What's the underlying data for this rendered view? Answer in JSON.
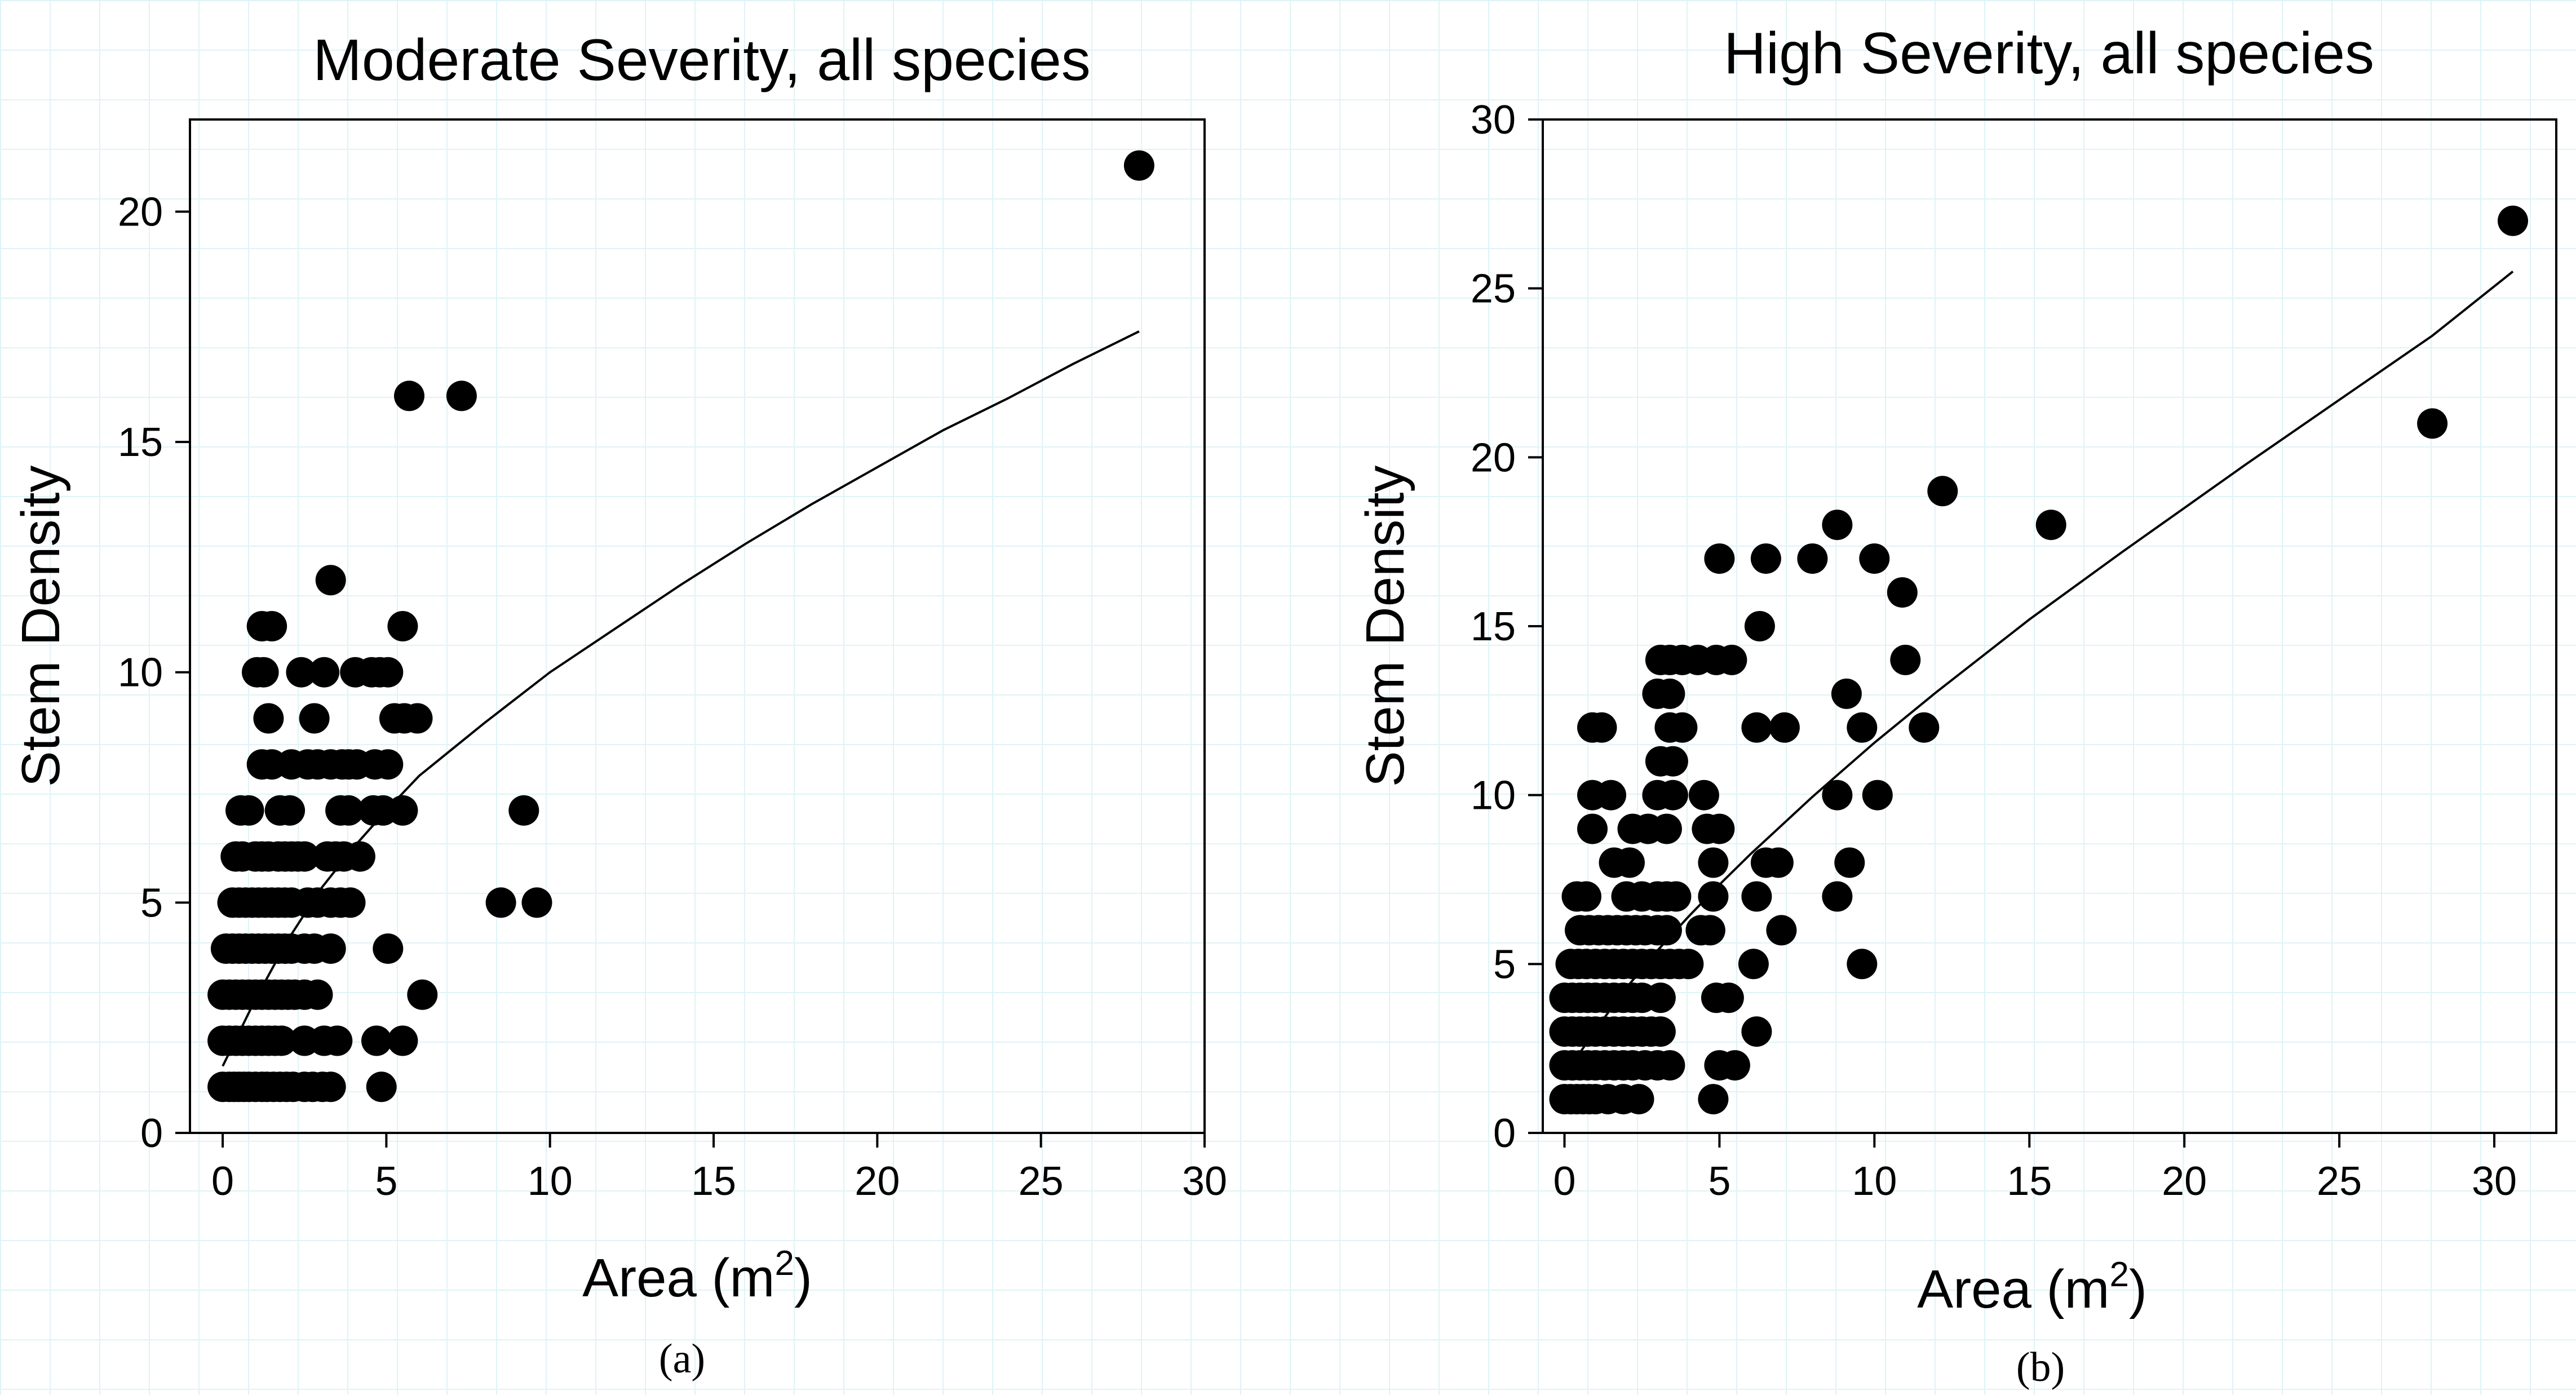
{
  "chart_data": [
    {
      "type": "scatter",
      "panel_label": "(a)",
      "title": "Moderate Severity, all species",
      "xlabel": "Area (m",
      "xlabel_sup": "2",
      "xlabel_close": ")",
      "ylabel": "Stem Density",
      "xlim": [
        -1,
        30
      ],
      "ylim": [
        0,
        22
      ],
      "xticks": [
        0,
        5,
        10,
        15,
        20,
        25,
        30
      ],
      "yticks": [
        0,
        5,
        10,
        15,
        20
      ],
      "grid": false,
      "points": [
        [
          0.0,
          1
        ],
        [
          0.2,
          1
        ],
        [
          0.35,
          1
        ],
        [
          0.5,
          1
        ],
        [
          0.65,
          1
        ],
        [
          0.8,
          1
        ],
        [
          1.0,
          1
        ],
        [
          1.2,
          1
        ],
        [
          1.35,
          1
        ],
        [
          1.55,
          1
        ],
        [
          1.75,
          1
        ],
        [
          1.95,
          1
        ],
        [
          2.15,
          1
        ],
        [
          2.5,
          1
        ],
        [
          2.75,
          1
        ],
        [
          3.05,
          1
        ],
        [
          3.3,
          1
        ],
        [
          4.85,
          1
        ],
        [
          0.0,
          2
        ],
        [
          0.2,
          2
        ],
        [
          0.4,
          2
        ],
        [
          0.6,
          2
        ],
        [
          0.8,
          2
        ],
        [
          1.0,
          2
        ],
        [
          1.2,
          2
        ],
        [
          1.4,
          2
        ],
        [
          1.6,
          2
        ],
        [
          1.8,
          2
        ],
        [
          2.5,
          2
        ],
        [
          3.1,
          2
        ],
        [
          3.5,
          2
        ],
        [
          4.7,
          2
        ],
        [
          5.5,
          2
        ],
        [
          0.0,
          3
        ],
        [
          0.2,
          3
        ],
        [
          0.4,
          3
        ],
        [
          0.6,
          3
        ],
        [
          0.8,
          3
        ],
        [
          1.0,
          3
        ],
        [
          1.2,
          3
        ],
        [
          1.4,
          3
        ],
        [
          1.6,
          3
        ],
        [
          1.8,
          3
        ],
        [
          2.0,
          3
        ],
        [
          2.2,
          3
        ],
        [
          2.5,
          3
        ],
        [
          2.9,
          3
        ],
        [
          6.1,
          3
        ],
        [
          0.1,
          4
        ],
        [
          0.3,
          4
        ],
        [
          0.5,
          4
        ],
        [
          0.7,
          4
        ],
        [
          0.9,
          4
        ],
        [
          1.1,
          4
        ],
        [
          1.3,
          4
        ],
        [
          1.5,
          4
        ],
        [
          1.7,
          4
        ],
        [
          1.9,
          4
        ],
        [
          2.1,
          4
        ],
        [
          2.5,
          4
        ],
        [
          2.8,
          4
        ],
        [
          3.3,
          4
        ],
        [
          5.05,
          4
        ],
        [
          0.3,
          5
        ],
        [
          0.5,
          5
        ],
        [
          0.7,
          5
        ],
        [
          0.9,
          5
        ],
        [
          1.1,
          5
        ],
        [
          1.3,
          5
        ],
        [
          1.5,
          5
        ],
        [
          1.7,
          5
        ],
        [
          1.9,
          5
        ],
        [
          2.1,
          5
        ],
        [
          2.6,
          5
        ],
        [
          2.9,
          5
        ],
        [
          3.3,
          5
        ],
        [
          3.6,
          5
        ],
        [
          3.9,
          5
        ],
        [
          8.5,
          5
        ],
        [
          9.6,
          5
        ],
        [
          0.4,
          6
        ],
        [
          0.6,
          6
        ],
        [
          1.0,
          6
        ],
        [
          1.2,
          6
        ],
        [
          1.4,
          6
        ],
        [
          1.7,
          6
        ],
        [
          1.9,
          6
        ],
        [
          2.1,
          6
        ],
        [
          2.3,
          6
        ],
        [
          2.5,
          6
        ],
        [
          3.2,
          6
        ],
        [
          3.45,
          6
        ],
        [
          3.7,
          6
        ],
        [
          4.2,
          6
        ],
        [
          0.55,
          7
        ],
        [
          0.8,
          7
        ],
        [
          1.75,
          7
        ],
        [
          2.05,
          7
        ],
        [
          3.6,
          7
        ],
        [
          3.85,
          7
        ],
        [
          4.6,
          7
        ],
        [
          4.9,
          7
        ],
        [
          5.5,
          7
        ],
        [
          9.2,
          7
        ],
        [
          1.2,
          8
        ],
        [
          1.5,
          8
        ],
        [
          2.1,
          8
        ],
        [
          2.6,
          8
        ],
        [
          2.9,
          8
        ],
        [
          3.3,
          8
        ],
        [
          3.65,
          8
        ],
        [
          3.85,
          8
        ],
        [
          4.1,
          8
        ],
        [
          4.65,
          8
        ],
        [
          5.05,
          8
        ],
        [
          1.4,
          9
        ],
        [
          2.8,
          9
        ],
        [
          5.25,
          9
        ],
        [
          5.55,
          9
        ],
        [
          5.95,
          9
        ],
        [
          1.05,
          10
        ],
        [
          1.25,
          10
        ],
        [
          2.4,
          10
        ],
        [
          3.1,
          10
        ],
        [
          4.05,
          10
        ],
        [
          4.55,
          10
        ],
        [
          4.8,
          10
        ],
        [
          5.05,
          10
        ],
        [
          1.2,
          11
        ],
        [
          1.5,
          11
        ],
        [
          5.5,
          11
        ],
        [
          3.3,
          12
        ],
        [
          5.7,
          16
        ],
        [
          7.3,
          16
        ],
        [
          28.0,
          21
        ]
      ],
      "fit_line": [
        [
          0,
          1.45
        ],
        [
          1,
          2.9
        ],
        [
          2,
          4.2
        ],
        [
          3,
          5.3
        ],
        [
          4,
          6.2
        ],
        [
          5,
          7.0
        ],
        [
          6,
          7.75
        ],
        [
          8,
          8.9
        ],
        [
          10,
          10.0
        ],
        [
          12,
          10.95
        ],
        [
          14,
          11.9
        ],
        [
          16,
          12.8
        ],
        [
          18,
          13.65
        ],
        [
          20,
          14.45
        ],
        [
          22,
          15.25
        ],
        [
          24,
          15.95
        ],
        [
          26,
          16.7
        ],
        [
          28,
          17.4
        ]
      ]
    },
    {
      "type": "scatter",
      "panel_label": "(b)",
      "title": "High Severity, all species",
      "xlabel": "Area (m",
      "xlabel_sup": "2",
      "xlabel_close": ")",
      "ylabel": "Stem Density",
      "xlim": [
        -0.7,
        32
      ],
      "ylim": [
        0,
        30
      ],
      "xticks": [
        0,
        5,
        10,
        15,
        20,
        25,
        30
      ],
      "yticks": [
        0,
        5,
        10,
        15,
        20,
        25,
        30
      ],
      "grid": false,
      "points": [
        [
          0.0,
          1
        ],
        [
          0.2,
          1
        ],
        [
          0.4,
          1
        ],
        [
          0.6,
          1
        ],
        [
          0.8,
          1
        ],
        [
          1.0,
          1
        ],
        [
          1.4,
          1
        ],
        [
          1.9,
          1
        ],
        [
          2.4,
          1
        ],
        [
          4.8,
          1
        ],
        [
          0.0,
          2
        ],
        [
          0.25,
          2
        ],
        [
          0.5,
          2
        ],
        [
          0.75,
          2
        ],
        [
          1.0,
          2
        ],
        [
          1.3,
          2
        ],
        [
          1.6,
          2
        ],
        [
          1.9,
          2
        ],
        [
          2.2,
          2
        ],
        [
          2.6,
          2
        ],
        [
          3.0,
          2
        ],
        [
          3.4,
          2
        ],
        [
          5.0,
          2
        ],
        [
          5.5,
          2
        ],
        [
          0.0,
          3
        ],
        [
          0.25,
          3
        ],
        [
          0.5,
          3
        ],
        [
          0.75,
          3
        ],
        [
          1.0,
          3
        ],
        [
          1.3,
          3
        ],
        [
          1.6,
          3
        ],
        [
          1.9,
          3
        ],
        [
          2.2,
          3
        ],
        [
          2.5,
          3
        ],
        [
          2.8,
          3
        ],
        [
          3.1,
          3
        ],
        [
          6.2,
          3
        ],
        [
          0.0,
          4
        ],
        [
          0.25,
          4
        ],
        [
          0.5,
          4
        ],
        [
          0.75,
          4
        ],
        [
          1.0,
          4
        ],
        [
          1.3,
          4
        ],
        [
          1.6,
          4
        ],
        [
          1.9,
          4
        ],
        [
          2.2,
          4
        ],
        [
          2.5,
          4
        ],
        [
          3.1,
          4
        ],
        [
          4.9,
          4
        ],
        [
          5.3,
          4
        ],
        [
          0.2,
          5
        ],
        [
          0.45,
          5
        ],
        [
          0.7,
          5
        ],
        [
          1.0,
          5
        ],
        [
          1.3,
          5
        ],
        [
          1.6,
          5
        ],
        [
          1.9,
          5
        ],
        [
          2.2,
          5
        ],
        [
          2.5,
          5
        ],
        [
          2.8,
          5
        ],
        [
          3.1,
          5
        ],
        [
          3.4,
          5
        ],
        [
          3.7,
          5
        ],
        [
          4.0,
          5
        ],
        [
          6.1,
          5
        ],
        [
          9.6,
          5
        ],
        [
          0.5,
          6
        ],
        [
          0.8,
          6
        ],
        [
          1.1,
          6
        ],
        [
          1.4,
          6
        ],
        [
          1.7,
          6
        ],
        [
          2.0,
          6
        ],
        [
          2.3,
          6
        ],
        [
          2.6,
          6
        ],
        [
          3.0,
          6
        ],
        [
          3.3,
          6
        ],
        [
          4.4,
          6
        ],
        [
          4.7,
          6
        ],
        [
          7.0,
          6
        ],
        [
          0.4,
          7
        ],
        [
          0.7,
          7
        ],
        [
          2.0,
          7
        ],
        [
          2.5,
          7
        ],
        [
          3.0,
          7
        ],
        [
          3.3,
          7
        ],
        [
          3.6,
          7
        ],
        [
          4.8,
          7
        ],
        [
          6.2,
          7
        ],
        [
          8.8,
          7
        ],
        [
          1.6,
          8
        ],
        [
          2.1,
          8
        ],
        [
          4.8,
          8
        ],
        [
          6.5,
          8
        ],
        [
          6.9,
          8
        ],
        [
          9.2,
          8
        ],
        [
          2.2,
          9
        ],
        [
          2.7,
          9
        ],
        [
          3.3,
          9
        ],
        [
          4.6,
          9
        ],
        [
          5.0,
          9
        ],
        [
          0.9,
          9
        ],
        [
          0.9,
          10
        ],
        [
          1.5,
          10
        ],
        [
          3.0,
          10
        ],
        [
          3.5,
          10
        ],
        [
          4.5,
          10
        ],
        [
          8.8,
          10
        ],
        [
          10.1,
          10
        ],
        [
          3.1,
          11
        ],
        [
          3.5,
          11
        ],
        [
          0.9,
          12
        ],
        [
          1.2,
          12
        ],
        [
          3.4,
          12
        ],
        [
          3.8,
          12
        ],
        [
          6.2,
          12
        ],
        [
          7.1,
          12
        ],
        [
          9.6,
          12
        ],
        [
          11.6,
          12
        ],
        [
          3.0,
          13
        ],
        [
          3.4,
          13
        ],
        [
          9.1,
          13
        ],
        [
          3.1,
          14
        ],
        [
          3.4,
          14
        ],
        [
          3.8,
          14
        ],
        [
          4.3,
          14
        ],
        [
          4.9,
          14
        ],
        [
          5.4,
          14
        ],
        [
          11.0,
          14
        ],
        [
          6.3,
          15
        ],
        [
          10.9,
          16
        ],
        [
          5.0,
          17
        ],
        [
          6.5,
          17
        ],
        [
          8.0,
          17
        ],
        [
          10.0,
          17
        ],
        [
          8.8,
          18
        ],
        [
          15.7,
          18
        ],
        [
          12.2,
          19
        ],
        [
          28.0,
          21
        ],
        [
          30.6,
          27
        ]
      ],
      "fit_line": [
        [
          0,
          1.7
        ],
        [
          1,
          3.05
        ],
        [
          2,
          4.3
        ],
        [
          3,
          5.4
        ],
        [
          4,
          6.4
        ],
        [
          5,
          7.35
        ],
        [
          6,
          8.25
        ],
        [
          8,
          9.95
        ],
        [
          10,
          11.55
        ],
        [
          12,
          13.05
        ],
        [
          15,
          15.2
        ],
        [
          18,
          17.2
        ],
        [
          20,
          18.5
        ],
        [
          22,
          19.8
        ],
        [
          25,
          21.7
        ],
        [
          28,
          23.6
        ],
        [
          30.6,
          25.5
        ]
      ]
    }
  ]
}
